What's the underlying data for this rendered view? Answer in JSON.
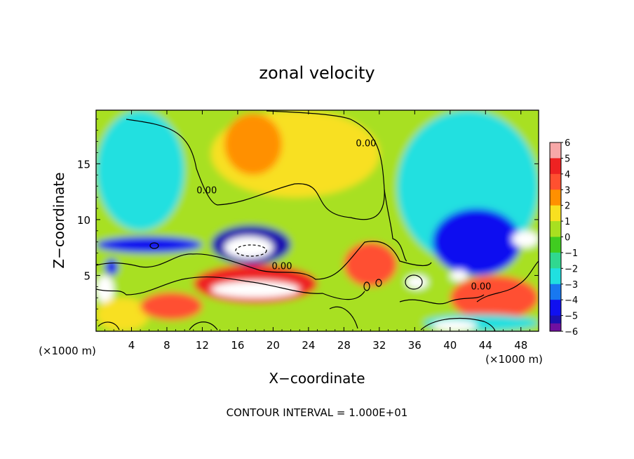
{
  "chart_data": {
    "type": "heatmap",
    "title": "zonal velocity",
    "xlabel": "X−coordinate",
    "ylabel": "Z−coordinate",
    "x_unit_left": "(×1000 m)",
    "x_unit_right": "(×1000 m)",
    "footer": "CONTOUR INTERVAL = 1.000E+01",
    "xlim": [
      0,
      50
    ],
    "ylim": [
      0,
      19.8
    ],
    "x_ticks": [
      4,
      8,
      12,
      16,
      20,
      24,
      28,
      32,
      36,
      40,
      44,
      48
    ],
    "x_tick_labels": [
      "4",
      "8",
      "12",
      "16",
      "20",
      "24",
      "28",
      "32",
      "36",
      "40",
      "44",
      "48"
    ],
    "y_ticks": [
      5,
      10,
      15
    ],
    "y_tick_labels": [
      "5",
      "10",
      "15"
    ],
    "contour_labels": [
      {
        "text": "0.00",
        "x": 30.5,
        "y": 16.8
      },
      {
        "text": "0.00",
        "x": 12.5,
        "y": 12.6
      },
      {
        "text": "0.00",
        "x": 21.0,
        "y": 5.8
      },
      {
        "text": "0.00",
        "x": 43.5,
        "y": 4.0
      }
    ],
    "colorbar": {
      "levels": [
        6,
        5,
        4,
        3,
        2,
        1,
        0,
        -1,
        -2,
        -3,
        -4,
        -5,
        -6
      ],
      "labels": [
        "6",
        "5",
        "4",
        "3",
        "2",
        "1",
        "0",
        "−1",
        "−2",
        "−3",
        "−4",
        "−5",
        "−6"
      ],
      "colors": [
        "#f7a8a8",
        "#ee2222",
        "#ff5030",
        "#ff9000",
        "#f8e020",
        "#a8e020",
        "#40cc20",
        "#30d890",
        "#20e0e0",
        "#1878f0",
        "#1010f0",
        "#1c10b0",
        "#7010a0"
      ]
    },
    "field_regions": [
      {
        "x": [
          0,
          50
        ],
        "y": [
          0,
          19.8
        ],
        "value": 0.5
      },
      {
        "x": [
          13,
          32
        ],
        "y": [
          12,
          19.8
        ],
        "value": 1.5
      },
      {
        "x": [
          14.5,
          21
        ],
        "y": [
          14,
          19.5
        ],
        "value": 2.5
      },
      {
        "x": [
          0,
          10
        ],
        "y": [
          9,
          19.8
        ],
        "value": -1.8
      },
      {
        "x": [
          34,
          50
        ],
        "y": [
          6,
          19.8
        ],
        "value": -2.5
      },
      {
        "x": [
          38,
          48
        ],
        "y": [
          5,
          11
        ],
        "value": -4.5
      },
      {
        "x": [
          13,
          22
        ],
        "y": [
          6,
          9.5
        ],
        "value": -5.5
      },
      {
        "x": [
          14.5,
          20
        ],
        "y": [
          6.5,
          8.5
        ],
        "value": -7
      },
      {
        "x": [
          0,
          12
        ],
        "y": [
          7,
          8.5
        ],
        "value": -4.5
      },
      {
        "x": [
          1,
          2.5
        ],
        "y": [
          5,
          6.5
        ],
        "value": -4.5
      },
      {
        "x": [
          11,
          25
        ],
        "y": [
          2.5,
          6
        ],
        "value": 5
      },
      {
        "x": [
          13,
          23
        ],
        "y": [
          3,
          4.5
        ],
        "value": 7
      },
      {
        "x": [
          0,
          2
        ],
        "y": [
          2.5,
          5
        ],
        "value": 6.5
      },
      {
        "x": [
          28,
          34
        ],
        "y": [
          4,
          8
        ],
        "value": 4
      },
      {
        "x": [
          35,
          37.5
        ],
        "y": [
          3.8,
          5
        ],
        "value": 7
      },
      {
        "x": [
          0,
          6
        ],
        "y": [
          0,
          3
        ],
        "value": 2
      },
      {
        "x": [
          5,
          12
        ],
        "y": [
          1,
          3.5
        ],
        "value": 4
      },
      {
        "x": [
          40,
          50
        ],
        "y": [
          1,
          5
        ],
        "value": 4
      },
      {
        "x": [
          37,
          50
        ],
        "y": [
          0,
          1.5
        ],
        "value": -2
      },
      {
        "x": [
          38,
          43
        ],
        "y": [
          0,
          1
        ],
        "value": 7
      },
      {
        "x": [
          40,
          42
        ],
        "y": [
          4.5,
          5.5
        ],
        "value": 7
      },
      {
        "x": [
          47,
          50
        ],
        "y": [
          7.5,
          9
        ],
        "value": -7
      }
    ]
  }
}
